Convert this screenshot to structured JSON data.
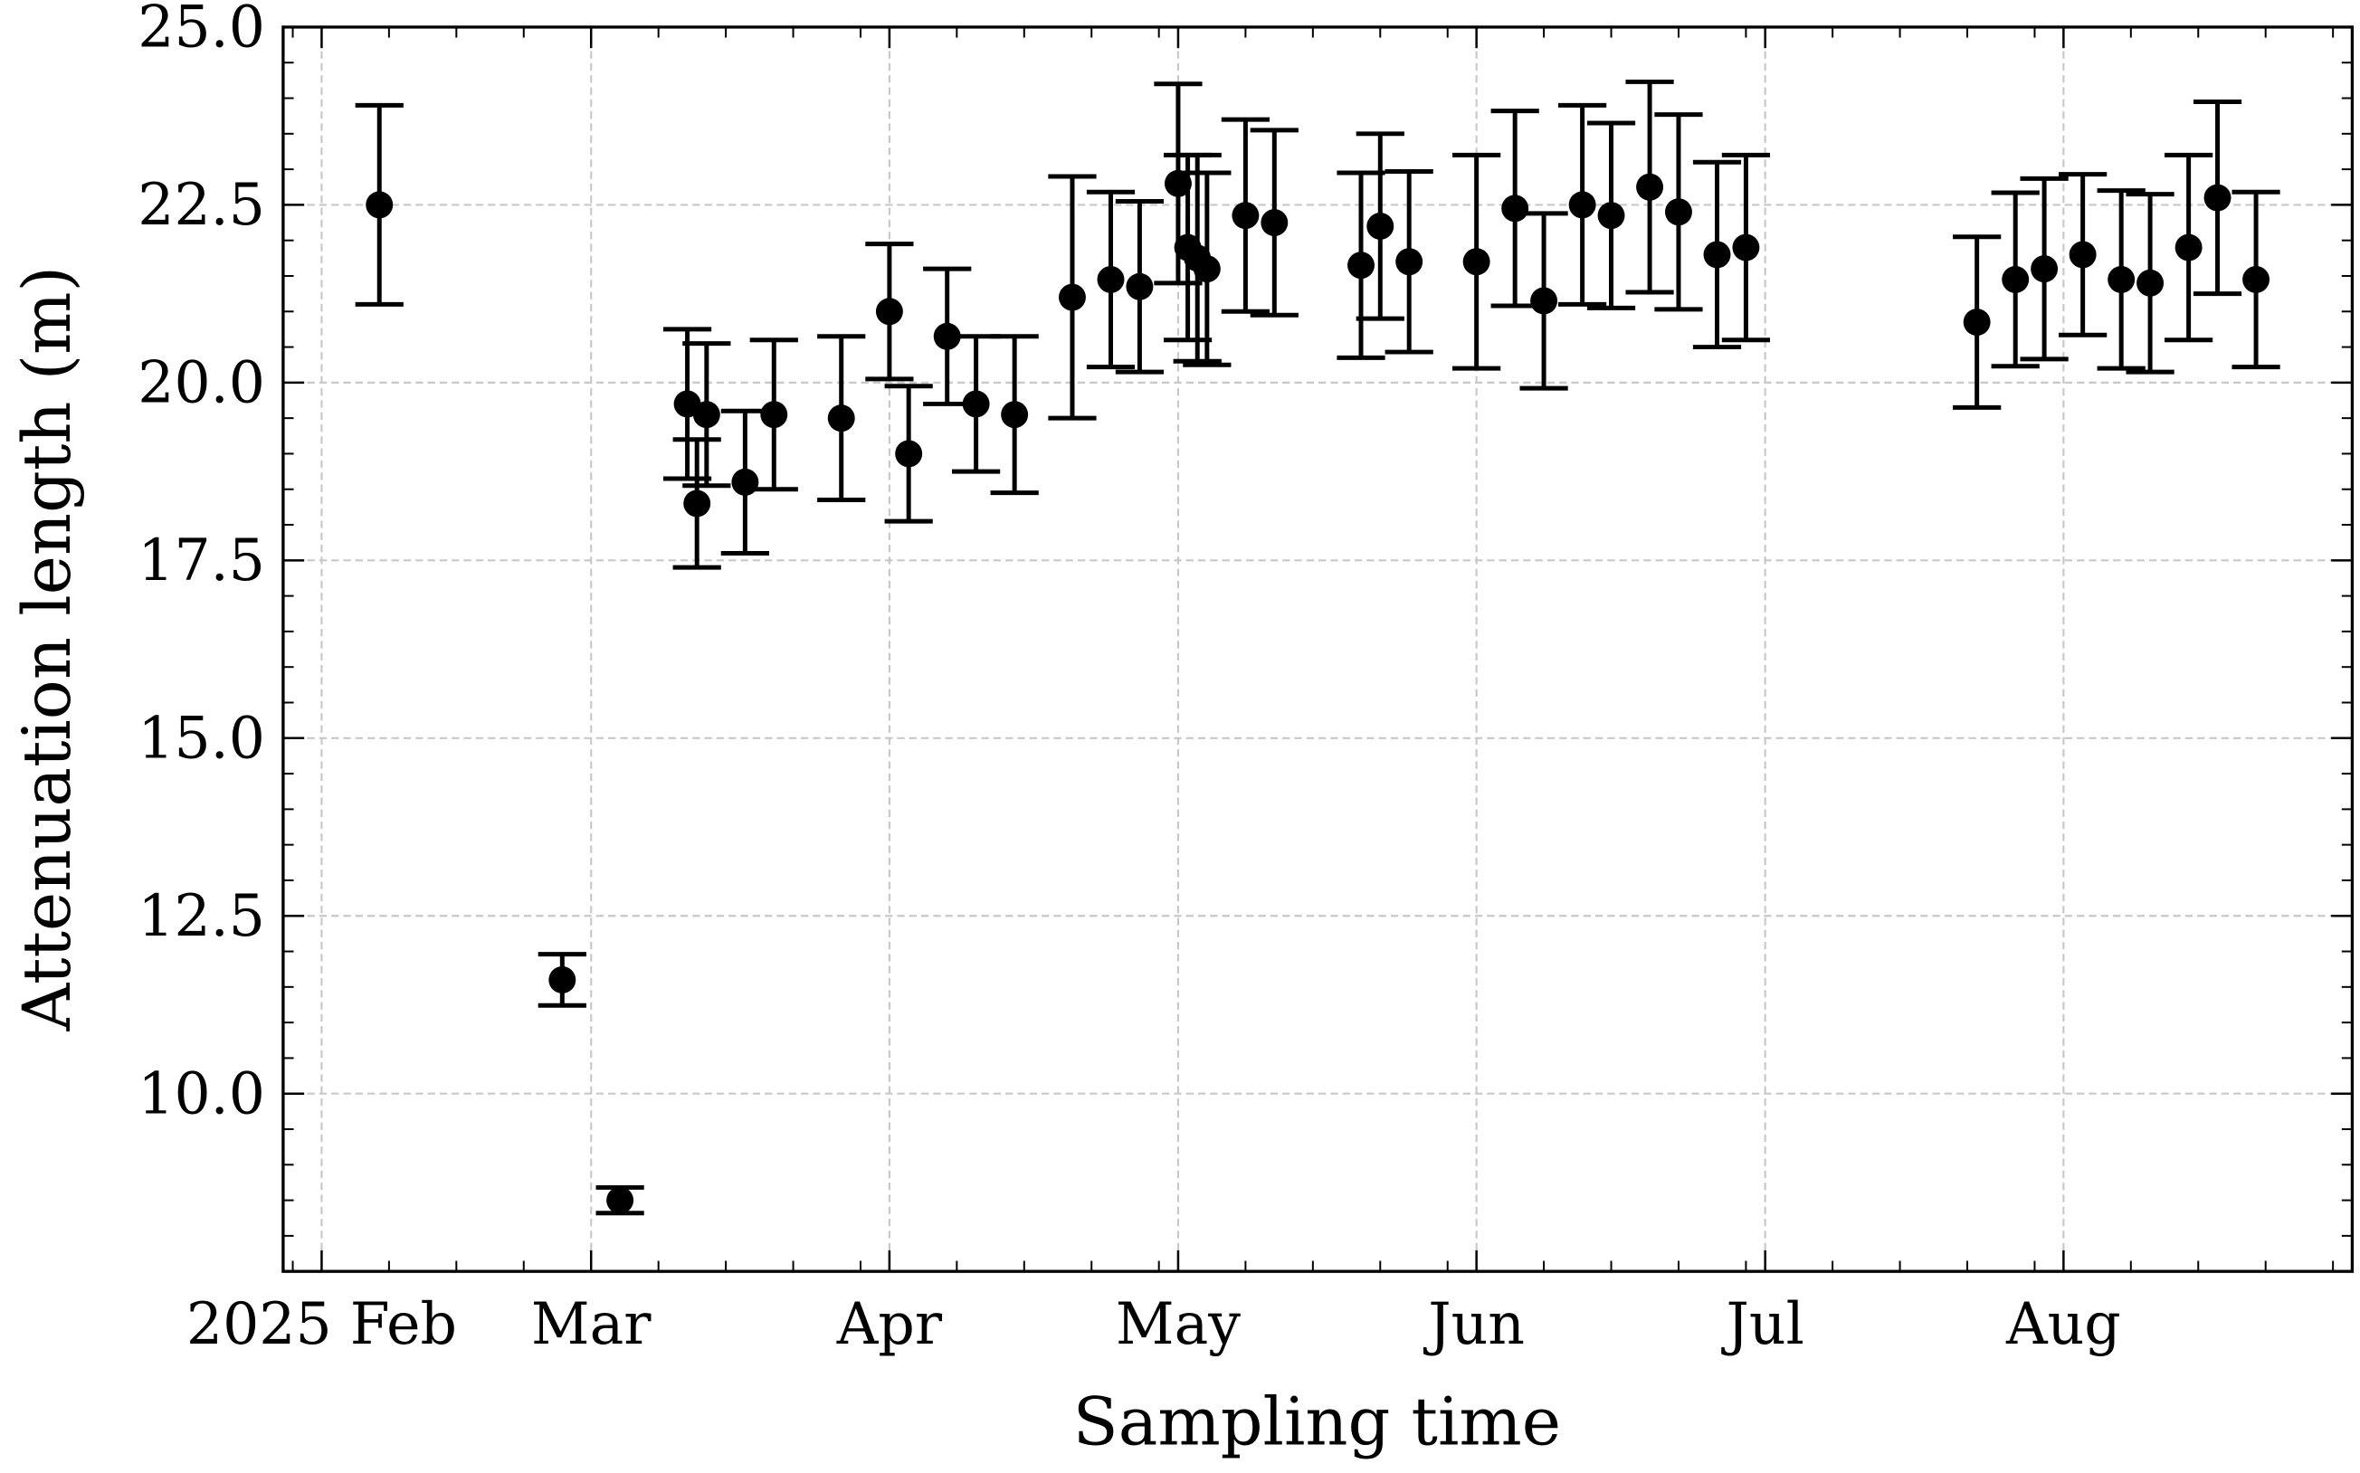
{
  "chart_data": {
    "type": "scatter",
    "title": "",
    "xlabel": "Sampling time",
    "ylabel": "Attenuation length (m)",
    "xlim": [
      "2025-01-28",
      "2025-08-31"
    ],
    "ylim": [
      7.5,
      25.0
    ],
    "grid": true,
    "x_ticks": [
      {
        "date": "2025-02-01",
        "label": "2025 Feb"
      },
      {
        "date": "2025-03-01",
        "label": "Mar"
      },
      {
        "date": "2025-04-01",
        "label": "Apr"
      },
      {
        "date": "2025-05-01",
        "label": "May"
      },
      {
        "date": "2025-06-01",
        "label": "Jun"
      },
      {
        "date": "2025-07-01",
        "label": "Jul"
      },
      {
        "date": "2025-08-01",
        "label": "Aug"
      }
    ],
    "y_ticks": [
      {
        "value": 10.0,
        "label": "10.0"
      },
      {
        "value": 12.5,
        "label": "12.5"
      },
      {
        "value": 15.0,
        "label": "15.0"
      },
      {
        "value": 17.5,
        "label": "17.5"
      },
      {
        "value": 20.0,
        "label": "20.0"
      },
      {
        "value": 22.5,
        "label": "22.5"
      },
      {
        "value": 25.0,
        "label": "25.0"
      }
    ],
    "series": [
      {
        "name": "Attenuation length",
        "color": "#000000",
        "points": [
          {
            "x": "2025-02-07",
            "y": 22.5,
            "err": 1.4
          },
          {
            "x": "2025-02-26",
            "y": 11.6,
            "err": 0.36
          },
          {
            "x": "2025-03-04",
            "y": 8.5,
            "err": 0.18
          },
          {
            "x": "2025-03-11",
            "y": 19.7,
            "err": 1.05
          },
          {
            "x": "2025-03-12",
            "y": 18.3,
            "err": 0.9
          },
          {
            "x": "2025-03-13",
            "y": 19.55,
            "err": 1.0
          },
          {
            "x": "2025-03-17",
            "y": 18.6,
            "err": 1.0
          },
          {
            "x": "2025-03-20",
            "y": 19.55,
            "err": 1.05
          },
          {
            "x": "2025-03-27",
            "y": 19.5,
            "err": 1.15
          },
          {
            "x": "2025-04-01",
            "y": 21.0,
            "err": 0.95
          },
          {
            "x": "2025-04-03",
            "y": 19.0,
            "err": 0.95
          },
          {
            "x": "2025-04-07",
            "y": 20.65,
            "err": 0.95
          },
          {
            "x": "2025-04-10",
            "y": 19.7,
            "err": 0.95
          },
          {
            "x": "2025-04-14",
            "y": 19.55,
            "err": 1.1
          },
          {
            "x": "2025-04-20",
            "y": 21.2,
            "err": 1.7
          },
          {
            "x": "2025-04-24",
            "y": 21.45,
            "err": 1.23
          },
          {
            "x": "2025-04-27",
            "y": 21.35,
            "err": 1.2
          },
          {
            "x": "2025-05-01",
            "y": 22.8,
            "err": 1.4
          },
          {
            "x": "2025-05-02",
            "y": 21.9,
            "err": 1.3
          },
          {
            "x": "2025-05-03",
            "y": 21.75,
            "err": 1.45
          },
          {
            "x": "2025-05-04",
            "y": 21.6,
            "err": 1.35
          },
          {
            "x": "2025-05-08",
            "y": 22.35,
            "err": 1.35
          },
          {
            "x": "2025-05-11",
            "y": 22.25,
            "err": 1.3
          },
          {
            "x": "2025-05-20",
            "y": 21.65,
            "err": 1.3
          },
          {
            "x": "2025-05-22",
            "y": 22.2,
            "err": 1.3
          },
          {
            "x": "2025-05-25",
            "y": 21.7,
            "err": 1.27
          },
          {
            "x": "2025-06-01",
            "y": 21.7,
            "err": 1.5
          },
          {
            "x": "2025-06-05",
            "y": 22.45,
            "err": 1.37
          },
          {
            "x": "2025-06-08",
            "y": 21.15,
            "err": 1.23
          },
          {
            "x": "2025-06-12",
            "y": 22.5,
            "err": 1.4
          },
          {
            "x": "2025-06-15",
            "y": 22.35,
            "err": 1.3
          },
          {
            "x": "2025-06-19",
            "y": 22.75,
            "err": 1.48
          },
          {
            "x": "2025-06-22",
            "y": 22.4,
            "err": 1.37
          },
          {
            "x": "2025-06-26",
            "y": 21.8,
            "err": 1.3
          },
          {
            "x": "2025-06-29",
            "y": 21.9,
            "err": 1.3
          },
          {
            "x": "2025-07-23",
            "y": 20.85,
            "err": 1.2
          },
          {
            "x": "2025-07-27",
            "y": 21.45,
            "err": 1.22
          },
          {
            "x": "2025-07-30",
            "y": 21.6,
            "err": 1.27
          },
          {
            "x": "2025-08-03",
            "y": 21.8,
            "err": 1.13
          },
          {
            "x": "2025-08-07",
            "y": 21.45,
            "err": 1.25
          },
          {
            "x": "2025-08-10",
            "y": 21.4,
            "err": 1.25
          },
          {
            "x": "2025-08-14",
            "y": 21.9,
            "err": 1.3
          },
          {
            "x": "2025-08-17",
            "y": 22.6,
            "err": 1.35
          },
          {
            "x": "2025-08-21",
            "y": 21.45,
            "err": 1.23
          }
        ]
      }
    ]
  }
}
